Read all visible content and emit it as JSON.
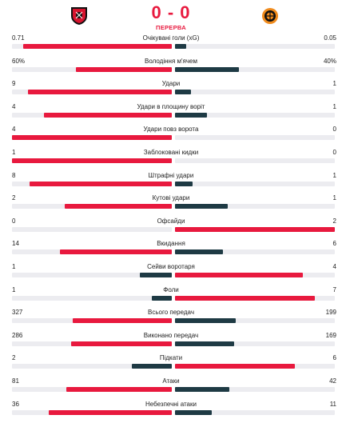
{
  "match": {
    "home_logo_icon": "stade-rennais-crest-icon",
    "away_logo_icon": "shakhtar-crest-icon",
    "score": "0 - 0",
    "status": "ПЕРЕРВА"
  },
  "colors": {
    "winner": "#e8193e",
    "loser": "#1e3a44",
    "track": "#ececf0"
  },
  "stats": [
    {
      "label": "Очікувані голи (xG)",
      "home": "0.71",
      "away": "0.05",
      "home_share": 0.93,
      "away_share": 0.07
    },
    {
      "label": "Володіння м'ячем",
      "home": "60%",
      "away": "40%",
      "home_share": 0.6,
      "away_share": 0.4
    },
    {
      "label": "Удари",
      "home": "9",
      "away": "1",
      "home_share": 0.9,
      "away_share": 0.1
    },
    {
      "label": "Удари в площину воріт",
      "home": "4",
      "away": "1",
      "home_share": 0.8,
      "away_share": 0.2
    },
    {
      "label": "Удари повз ворота",
      "home": "4",
      "away": "0",
      "home_share": 1.0,
      "away_share": 0.0
    },
    {
      "label": "Заблоковані кидки",
      "home": "1",
      "away": "0",
      "home_share": 1.0,
      "away_share": 0.0
    },
    {
      "label": "Штрафні удари",
      "home": "8",
      "away": "1",
      "home_share": 0.89,
      "away_share": 0.11
    },
    {
      "label": "Кутові удари",
      "home": "2",
      "away": "1",
      "home_share": 0.67,
      "away_share": 0.33
    },
    {
      "label": "Офсайди",
      "home": "0",
      "away": "2",
      "home_share": 0.0,
      "away_share": 1.0
    },
    {
      "label": "Вкидання",
      "home": "14",
      "away": "6",
      "home_share": 0.7,
      "away_share": 0.3
    },
    {
      "label": "Сейви воротаря",
      "home": "1",
      "away": "4",
      "home_share": 0.2,
      "away_share": 0.8
    },
    {
      "label": "Фоли",
      "home": "1",
      "away": "7",
      "home_share": 0.125,
      "away_share": 0.875
    },
    {
      "label": "Всього передач",
      "home": "327",
      "away": "199",
      "home_share": 0.62,
      "away_share": 0.38
    },
    {
      "label": "Виконано передач",
      "home": "286",
      "away": "169",
      "home_share": 0.63,
      "away_share": 0.37
    },
    {
      "label": "Підкати",
      "home": "2",
      "away": "6",
      "home_share": 0.25,
      "away_share": 0.75
    },
    {
      "label": "Атаки",
      "home": "81",
      "away": "42",
      "home_share": 0.66,
      "away_share": 0.34
    },
    {
      "label": "Небезпечні атаки",
      "home": "36",
      "away": "11",
      "home_share": 0.77,
      "away_share": 0.23
    }
  ]
}
